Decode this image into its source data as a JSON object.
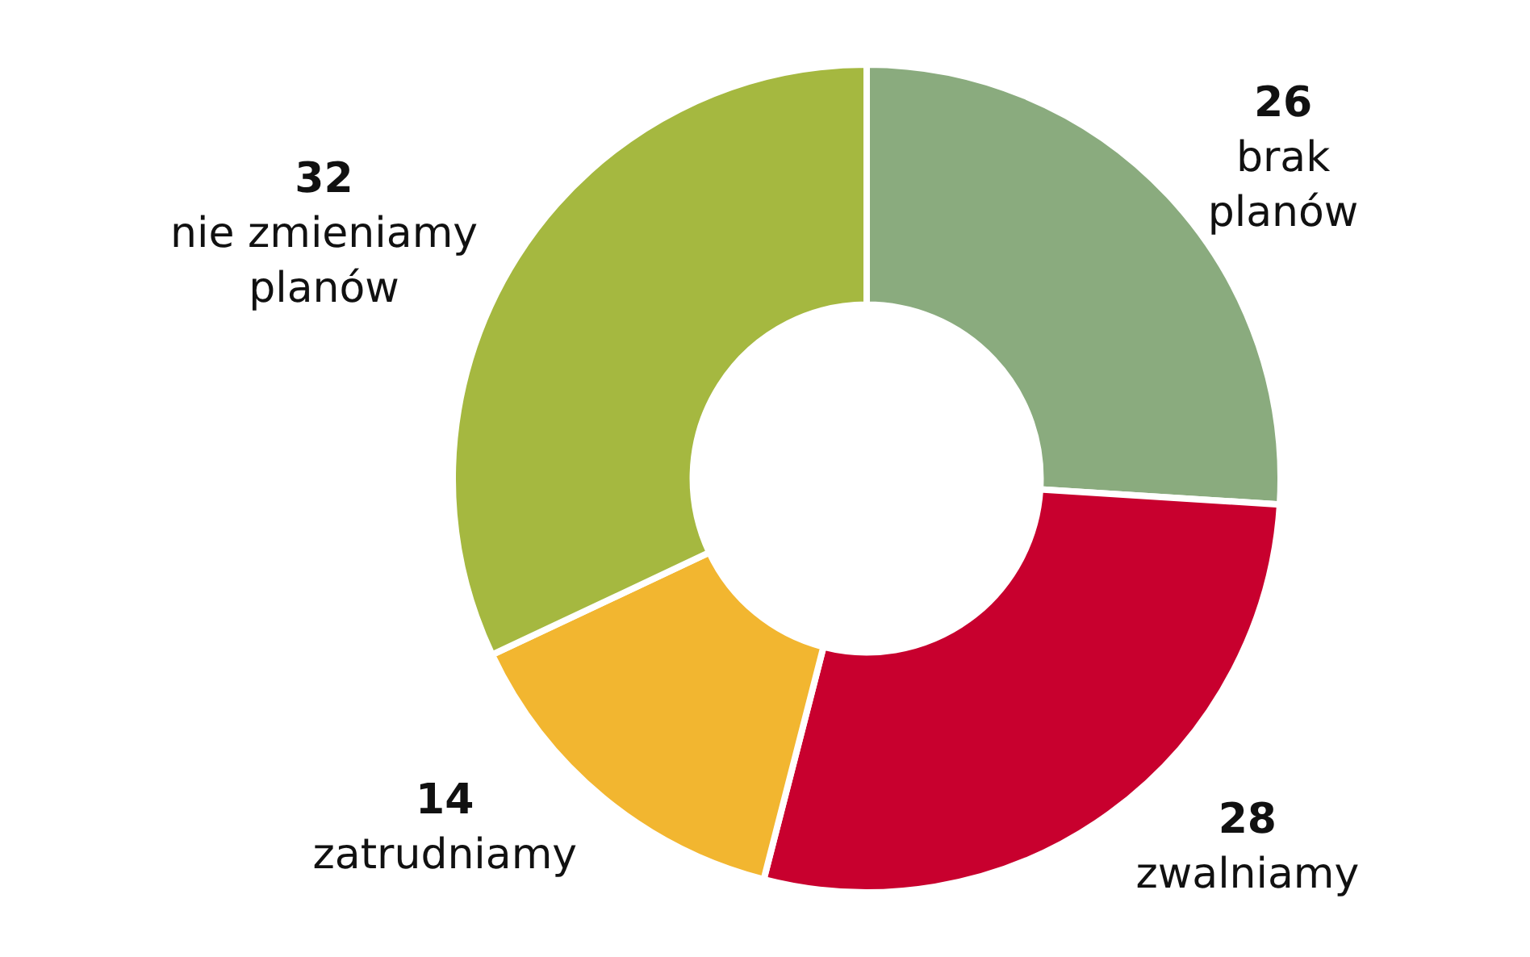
{
  "chart_data": {
    "type": "donut",
    "categories": [
      "brak planów",
      "zwalniamy",
      "zatrudniamy",
      "nie zmieniamy planów"
    ],
    "values": [
      26,
      28,
      14,
      32
    ],
    "colors": [
      "#8aab7e",
      "#c8002e",
      "#f2b630",
      "#a5b840"
    ],
    "data_labels": true,
    "legend": false
  }
}
